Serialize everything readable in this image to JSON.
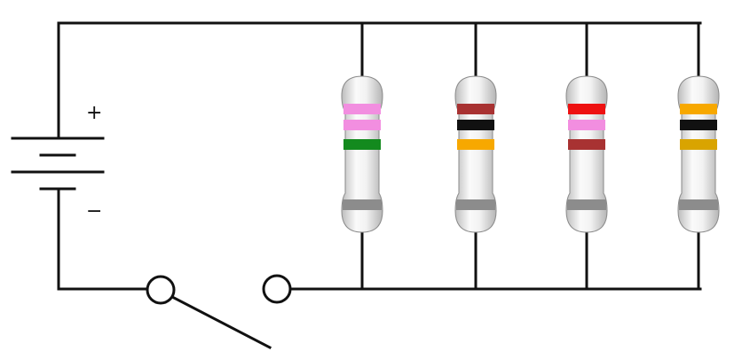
{
  "battery": {
    "plus_label": "+",
    "minus_label": "−"
  },
  "switch": {
    "state": "open"
  },
  "colors": {
    "wire": "#111111",
    "body_light": "#f7f7f7",
    "body_shade": "#c9c9c9",
    "tolerance_band": "#8c8c8c"
  },
  "resistors": [
    {
      "bands": [
        "#f28ee0",
        "#f28ee0",
        "#138a1e"
      ]
    },
    {
      "bands": [
        "#a83232",
        "#111111",
        "#f7a800"
      ]
    },
    {
      "bands": [
        "#ee1111",
        "#f28ee0",
        "#a83232"
      ]
    },
    {
      "bands": [
        "#f7a800",
        "#111111",
        "#d9a400"
      ]
    }
  ]
}
